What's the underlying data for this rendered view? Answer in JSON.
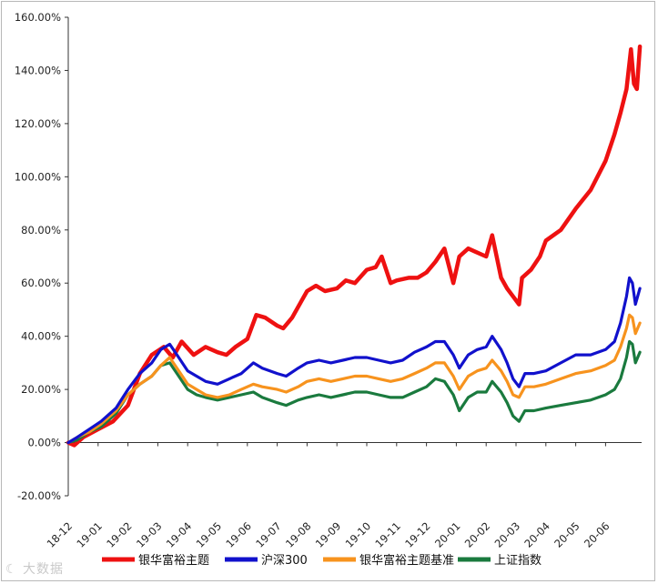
{
  "watermark": "大数据",
  "chart_data": {
    "type": "line",
    "x_ticks": [
      "18-12",
      "19-01",
      "19-02",
      "19-03",
      "19-04",
      "19-05",
      "19-06",
      "19-07",
      "19-08",
      "19-09",
      "19-10",
      "19-11",
      "19-12",
      "20-01",
      "20-02",
      "20-03",
      "20-04",
      "20-05",
      "20-06"
    ],
    "y_tick_labels": [
      "-20.00%",
      "0.00%",
      "20.00%",
      "40.00%",
      "60.00%",
      "80.00%",
      "100.00%",
      "120.00%",
      "140.00%",
      "160.00%"
    ],
    "ylim": [
      -20,
      160
    ],
    "y_step": 20,
    "grid": false,
    "legend_position": "bottom",
    "series": [
      {
        "name": "银华富裕主题",
        "color": "#ee1111",
        "points": [
          [
            0,
            0
          ],
          [
            0.2,
            -1
          ],
          [
            0.5,
            2
          ],
          [
            1,
            5
          ],
          [
            1.5,
            8
          ],
          [
            2,
            14
          ],
          [
            2.4,
            26
          ],
          [
            2.8,
            33
          ],
          [
            3.2,
            36
          ],
          [
            3.5,
            32
          ],
          [
            3.8,
            38
          ],
          [
            4.2,
            33
          ],
          [
            4.6,
            36
          ],
          [
            5,
            34
          ],
          [
            5.3,
            33
          ],
          [
            5.6,
            36
          ],
          [
            6,
            39
          ],
          [
            6.3,
            48
          ],
          [
            6.6,
            47
          ],
          [
            7,
            44
          ],
          [
            7.2,
            43
          ],
          [
            7.5,
            47
          ],
          [
            7.8,
            53
          ],
          [
            8,
            57
          ],
          [
            8.3,
            59
          ],
          [
            8.6,
            57
          ],
          [
            9,
            58
          ],
          [
            9.3,
            61
          ],
          [
            9.6,
            60
          ],
          [
            10,
            65
          ],
          [
            10.3,
            66
          ],
          [
            10.5,
            70
          ],
          [
            10.8,
            60
          ],
          [
            11,
            61
          ],
          [
            11.4,
            62
          ],
          [
            11.7,
            62
          ],
          [
            12,
            64
          ],
          [
            12.3,
            68
          ],
          [
            12.6,
            73
          ],
          [
            12.9,
            60
          ],
          [
            13.1,
            70
          ],
          [
            13.4,
            73
          ],
          [
            13.6,
            72
          ],
          [
            14,
            70
          ],
          [
            14.2,
            78
          ],
          [
            14.5,
            62
          ],
          [
            14.7,
            58
          ],
          [
            14.9,
            55
          ],
          [
            15.1,
            52
          ],
          [
            15.2,
            62
          ],
          [
            15.5,
            65
          ],
          [
            15.8,
            70
          ],
          [
            16,
            76
          ],
          [
            16.5,
            80
          ],
          [
            17,
            88
          ],
          [
            17.5,
            95
          ],
          [
            18,
            106
          ],
          [
            18.3,
            116
          ],
          [
            18.5,
            124
          ],
          [
            18.7,
            133
          ],
          [
            18.85,
            148
          ],
          [
            18.95,
            135
          ],
          [
            19.05,
            133
          ],
          [
            19.15,
            149
          ]
        ]
      },
      {
        "name": "沪深300",
        "color": "#1111cc",
        "points": [
          [
            0,
            0
          ],
          [
            0.3,
            2
          ],
          [
            0.7,
            5
          ],
          [
            1.1,
            8
          ],
          [
            1.6,
            13
          ],
          [
            2,
            20
          ],
          [
            2.4,
            26
          ],
          [
            2.8,
            30
          ],
          [
            3.1,
            35
          ],
          [
            3.4,
            37
          ],
          [
            3.7,
            32
          ],
          [
            4,
            27
          ],
          [
            4.3,
            25
          ],
          [
            4.6,
            23
          ],
          [
            5,
            22
          ],
          [
            5.4,
            24
          ],
          [
            5.8,
            26
          ],
          [
            6.2,
            30
          ],
          [
            6.5,
            28
          ],
          [
            7,
            26
          ],
          [
            7.3,
            25
          ],
          [
            7.7,
            28
          ],
          [
            8,
            30
          ],
          [
            8.4,
            31
          ],
          [
            8.8,
            30
          ],
          [
            9.2,
            31
          ],
          [
            9.6,
            32
          ],
          [
            10,
            32
          ],
          [
            10.4,
            31
          ],
          [
            10.8,
            30
          ],
          [
            11.2,
            31
          ],
          [
            11.6,
            34
          ],
          [
            12,
            36
          ],
          [
            12.3,
            38
          ],
          [
            12.6,
            38
          ],
          [
            12.9,
            33
          ],
          [
            13.1,
            28
          ],
          [
            13.4,
            33
          ],
          [
            13.7,
            35
          ],
          [
            14,
            36
          ],
          [
            14.2,
            40
          ],
          [
            14.5,
            35
          ],
          [
            14.7,
            30
          ],
          [
            14.9,
            24
          ],
          [
            15.1,
            21
          ],
          [
            15.3,
            26
          ],
          [
            15.6,
            26
          ],
          [
            16,
            27
          ],
          [
            16.5,
            30
          ],
          [
            17,
            33
          ],
          [
            17.5,
            33
          ],
          [
            18,
            35
          ],
          [
            18.3,
            38
          ],
          [
            18.5,
            45
          ],
          [
            18.7,
            55
          ],
          [
            18.8,
            62
          ],
          [
            18.9,
            60
          ],
          [
            19,
            52
          ],
          [
            19.15,
            58
          ]
        ]
      },
      {
        "name": "银华富裕主题基准",
        "color": "#f7931e",
        "points": [
          [
            0,
            0
          ],
          [
            0.3,
            2
          ],
          [
            0.7,
            4
          ],
          [
            1.1,
            7
          ],
          [
            1.6,
            12
          ],
          [
            2,
            18
          ],
          [
            2.4,
            22
          ],
          [
            2.8,
            25
          ],
          [
            3.1,
            29
          ],
          [
            3.4,
            32
          ],
          [
            3.7,
            27
          ],
          [
            4,
            22
          ],
          [
            4.3,
            20
          ],
          [
            4.6,
            18
          ],
          [
            5,
            17
          ],
          [
            5.4,
            18
          ],
          [
            5.8,
            20
          ],
          [
            6.2,
            22
          ],
          [
            6.5,
            21
          ],
          [
            7,
            20
          ],
          [
            7.3,
            19
          ],
          [
            7.7,
            21
          ],
          [
            8,
            23
          ],
          [
            8.4,
            24
          ],
          [
            8.8,
            23
          ],
          [
            9.2,
            24
          ],
          [
            9.6,
            25
          ],
          [
            10,
            25
          ],
          [
            10.4,
            24
          ],
          [
            10.8,
            23
          ],
          [
            11.2,
            24
          ],
          [
            11.6,
            26
          ],
          [
            12,
            28
          ],
          [
            12.3,
            30
          ],
          [
            12.6,
            30
          ],
          [
            12.9,
            25
          ],
          [
            13.1,
            20
          ],
          [
            13.4,
            25
          ],
          [
            13.7,
            27
          ],
          [
            14,
            28
          ],
          [
            14.2,
            31
          ],
          [
            14.5,
            27
          ],
          [
            14.7,
            23
          ],
          [
            14.9,
            18
          ],
          [
            15.1,
            17
          ],
          [
            15.3,
            21
          ],
          [
            15.6,
            21
          ],
          [
            16,
            22
          ],
          [
            16.5,
            24
          ],
          [
            17,
            26
          ],
          [
            17.5,
            27
          ],
          [
            18,
            29
          ],
          [
            18.3,
            31
          ],
          [
            18.5,
            36
          ],
          [
            18.7,
            43
          ],
          [
            18.8,
            48
          ],
          [
            18.9,
            47
          ],
          [
            19,
            41
          ],
          [
            19.15,
            45
          ]
        ]
      },
      {
        "name": "上证指数",
        "color": "#1a7a3e",
        "points": [
          [
            0,
            0
          ],
          [
            0.3,
            1
          ],
          [
            0.7,
            4
          ],
          [
            1.1,
            6
          ],
          [
            1.6,
            11
          ],
          [
            2,
            18
          ],
          [
            2.4,
            22
          ],
          [
            2.8,
            25
          ],
          [
            3.1,
            29
          ],
          [
            3.4,
            30
          ],
          [
            3.7,
            25
          ],
          [
            4,
            20
          ],
          [
            4.3,
            18
          ],
          [
            4.6,
            17
          ],
          [
            5,
            16
          ],
          [
            5.4,
            17
          ],
          [
            5.8,
            18
          ],
          [
            6.2,
            19
          ],
          [
            6.5,
            17
          ],
          [
            7,
            15
          ],
          [
            7.3,
            14
          ],
          [
            7.7,
            16
          ],
          [
            8,
            17
          ],
          [
            8.4,
            18
          ],
          [
            8.8,
            17
          ],
          [
            9.2,
            18
          ],
          [
            9.6,
            19
          ],
          [
            10,
            19
          ],
          [
            10.4,
            18
          ],
          [
            10.8,
            17
          ],
          [
            11.2,
            17
          ],
          [
            11.6,
            19
          ],
          [
            12,
            21
          ],
          [
            12.3,
            24
          ],
          [
            12.6,
            23
          ],
          [
            12.9,
            18
          ],
          [
            13.1,
            12
          ],
          [
            13.4,
            17
          ],
          [
            13.7,
            19
          ],
          [
            14,
            19
          ],
          [
            14.2,
            23
          ],
          [
            14.5,
            19
          ],
          [
            14.7,
            15
          ],
          [
            14.9,
            10
          ],
          [
            15.1,
            8
          ],
          [
            15.3,
            12
          ],
          [
            15.6,
            12
          ],
          [
            16,
            13
          ],
          [
            16.5,
            14
          ],
          [
            17,
            15
          ],
          [
            17.5,
            16
          ],
          [
            18,
            18
          ],
          [
            18.3,
            20
          ],
          [
            18.5,
            24
          ],
          [
            18.7,
            32
          ],
          [
            18.8,
            38
          ],
          [
            18.9,
            37
          ],
          [
            19,
            30
          ],
          [
            19.15,
            34
          ]
        ]
      }
    ]
  }
}
